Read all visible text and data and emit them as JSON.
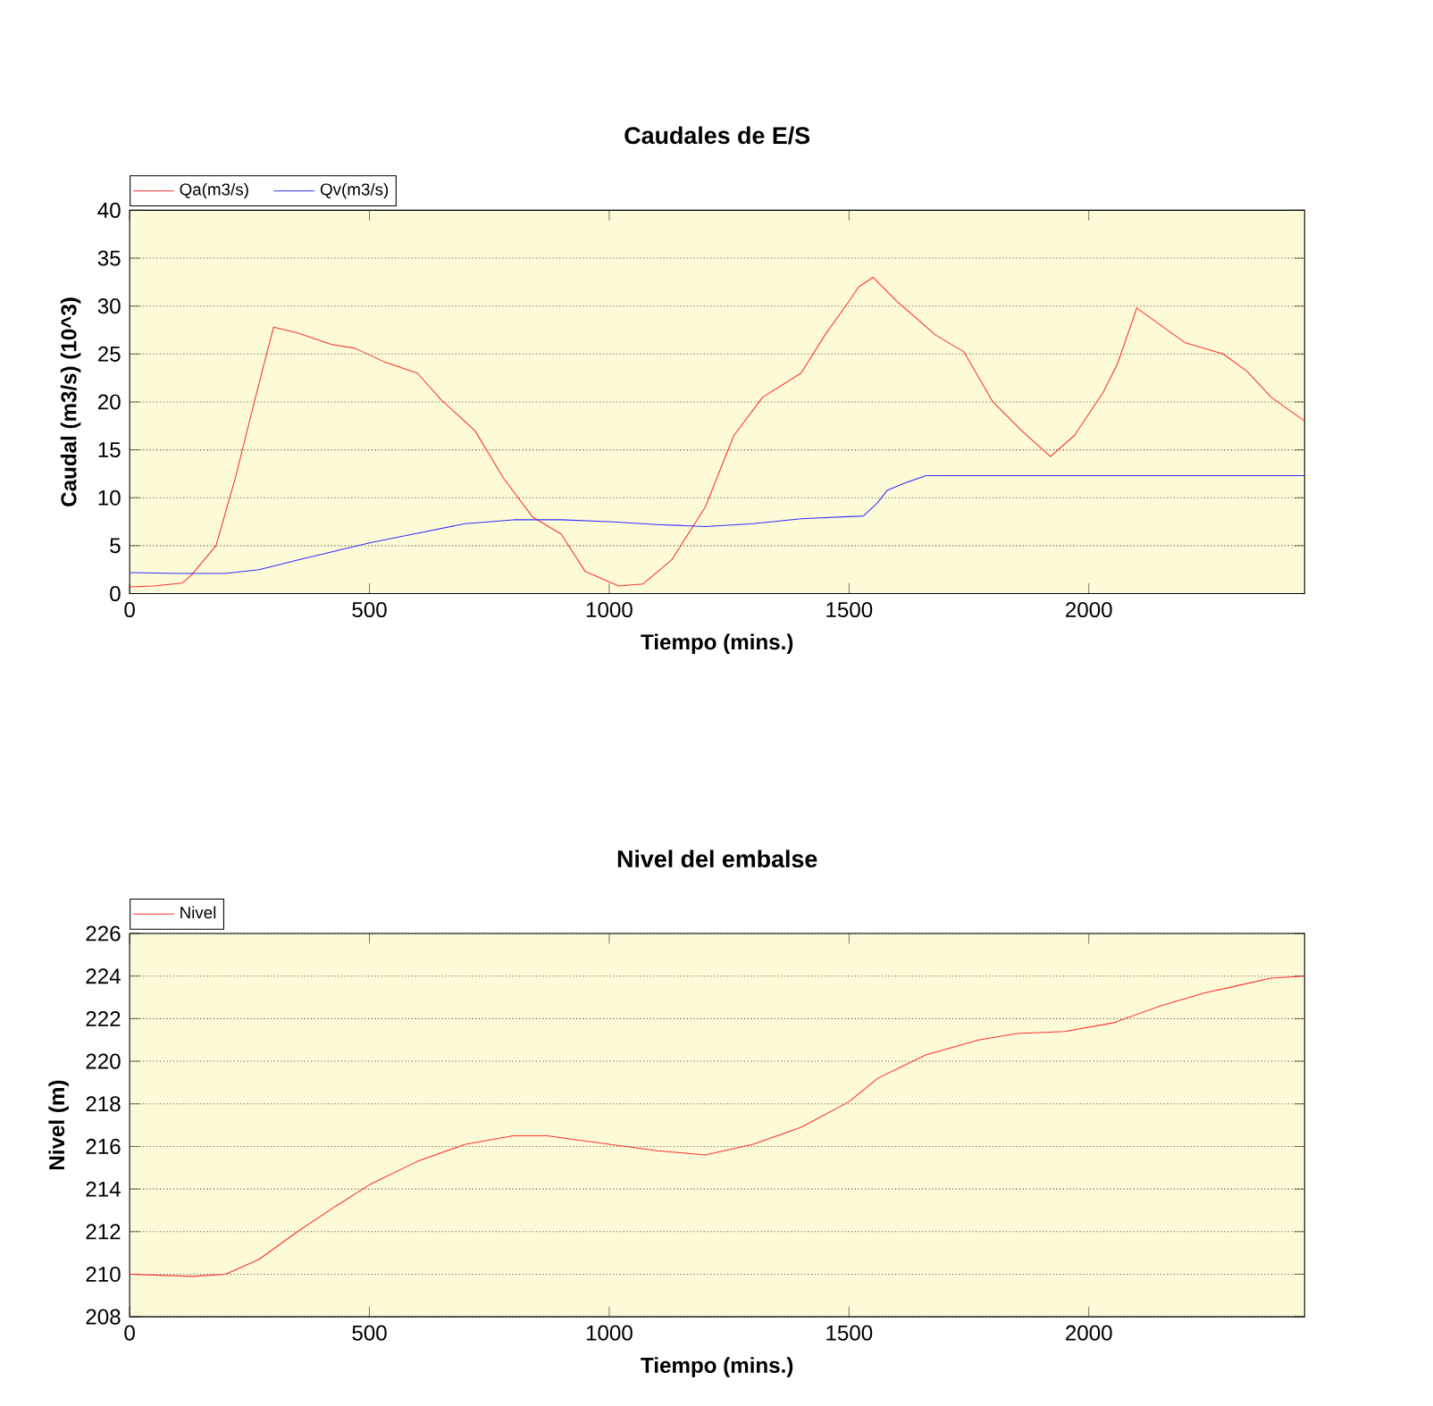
{
  "chart_data": [
    {
      "type": "line",
      "title": "Caudales de E/S",
      "xlabel": "Tiempo (mins.)",
      "ylabel": "Caudal (m3/s) (10^3)",
      "xlim": [
        0,
        2450
      ],
      "xticks": [
        0,
        500,
        1000,
        1500,
        2000
      ],
      "ylim": [
        0,
        40
      ],
      "yticks": [
        0,
        5,
        10,
        15,
        20,
        25,
        30,
        35,
        40
      ],
      "grid": "y",
      "legend": "top left",
      "line_style": "solid",
      "series": [
        {
          "name": "Qa(m3/s)",
          "color": "#ff3030",
          "x": [
            0,
            50,
            110,
            130,
            180,
            220,
            260,
            300,
            350,
            420,
            470,
            530,
            600,
            650,
            720,
            780,
            840,
            900,
            950,
            1020,
            1070,
            1130,
            1200,
            1260,
            1320,
            1400,
            1450,
            1500,
            1520,
            1550,
            1600,
            1680,
            1740,
            1800,
            1860,
            1920,
            1970,
            2030,
            2060,
            2100,
            2150,
            2200,
            2280,
            2330,
            2380,
            2450
          ],
          "values": [
            0.7,
            0.8,
            1.1,
            2,
            5,
            12,
            20,
            27.8,
            27.2,
            26,
            25.6,
            24.2,
            23,
            20.2,
            17,
            12,
            8,
            6.2,
            2.3,
            0.8,
            1,
            3.5,
            9,
            16.5,
            20.5,
            23,
            27,
            30.5,
            32,
            33,
            30.5,
            27,
            25.2,
            20,
            17,
            14.3,
            16.5,
            21,
            24,
            29.8,
            28,
            26.2,
            25,
            23.2,
            20.5,
            18
          ]
        },
        {
          "name": "Qv(m3/s)",
          "color": "#3030ff",
          "x": [
            0,
            100,
            200,
            270,
            350,
            500,
            600,
            700,
            800,
            900,
            1000,
            1100,
            1200,
            1300,
            1400,
            1530,
            1560,
            1580,
            1620,
            1660,
            2450
          ],
          "values": [
            2.2,
            2.1,
            2.1,
            2.5,
            3.5,
            5.3,
            6.3,
            7.3,
            7.7,
            7.7,
            7.5,
            7.2,
            7.0,
            7.3,
            7.8,
            8.1,
            9.5,
            10.8,
            11.6,
            12.3,
            12.3
          ]
        }
      ]
    },
    {
      "type": "line",
      "title": "Nivel del embalse",
      "xlabel": "Tiempo (mins.)",
      "ylabel": "Nivel (m)",
      "xlim": [
        0,
        2450
      ],
      "xticks": [
        0,
        500,
        1000,
        1500,
        2000
      ],
      "ylim": [
        208,
        226
      ],
      "yticks": [
        208,
        210,
        212,
        214,
        216,
        218,
        220,
        222,
        224,
        226
      ],
      "grid": "y",
      "legend": "top left",
      "line_style": "solid",
      "series": [
        {
          "name": "Nivel",
          "color": "#ff3030",
          "x": [
            0,
            130,
            200,
            270,
            350,
            430,
            500,
            600,
            700,
            800,
            870,
            1000,
            1100,
            1200,
            1300,
            1400,
            1500,
            1560,
            1660,
            1770,
            1850,
            1950,
            2050,
            2150,
            2240,
            2300,
            2380,
            2450
          ],
          "values": [
            210,
            209.9,
            210,
            210.7,
            212,
            213.2,
            214.2,
            215.3,
            216.1,
            216.5,
            216.5,
            216.1,
            215.8,
            215.6,
            216.1,
            216.9,
            218.1,
            219.2,
            220.3,
            221,
            221.3,
            221.4,
            221.8,
            222.6,
            223.2,
            223.5,
            223.9,
            224
          ]
        }
      ]
    }
  ]
}
